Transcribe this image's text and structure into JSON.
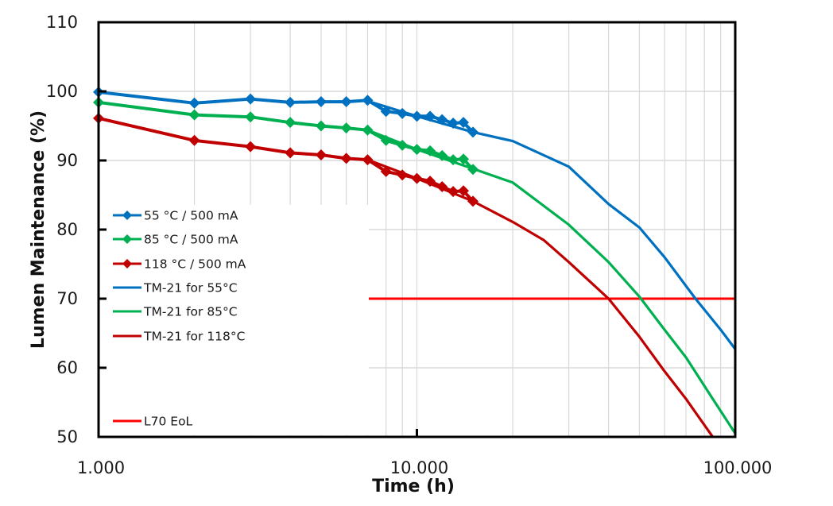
{
  "chart_data": {
    "type": "line",
    "title": "",
    "xlabel": "Time (h)",
    "ylabel": "Lumen Maintenance (%)",
    "xscale": "log",
    "xlim": [
      1000,
      100000
    ],
    "ylim": [
      50,
      110
    ],
    "grid": true,
    "x_tick_labels": [
      "1.000",
      "10.000",
      "100.000"
    ],
    "x_tick_values": [
      1000,
      10000,
      100000
    ],
    "y_tick_labels": [
      "50",
      "60",
      "70",
      "80",
      "90",
      "100",
      "110"
    ],
    "y_tick_values": [
      50,
      60,
      70,
      80,
      90,
      100,
      110
    ],
    "legend_position": "left",
    "series": [
      {
        "name": "55 °C / 500 mA",
        "kind": "measured",
        "marker": "diamond",
        "color": "#0070C0",
        "x": [
          1000,
          2000,
          3000,
          4000,
          5000,
          6000,
          7000,
          8000,
          9000,
          10000,
          11000,
          12000,
          13000,
          14000,
          15000
        ],
        "y": [
          99.9,
          98.3,
          98.9,
          98.4,
          98.5,
          98.5,
          98.7,
          97.1,
          96.8,
          96.4,
          96.4,
          95.9,
          95.4,
          95.5,
          94.1
        ]
      },
      {
        "name": "85 °C / 500 mA",
        "kind": "measured",
        "marker": "diamond",
        "color": "#00B050",
        "x": [
          1000,
          2000,
          3000,
          4000,
          5000,
          6000,
          7000,
          8000,
          9000,
          10000,
          11000,
          12000,
          13000,
          14000,
          15000
        ],
        "y": [
          98.4,
          96.6,
          96.3,
          95.5,
          95.0,
          94.7,
          94.4,
          92.9,
          92.2,
          91.6,
          91.4,
          90.7,
          90.1,
          90.2,
          88.7
        ]
      },
      {
        "name": "118 °C / 500 mA",
        "kind": "measured",
        "marker": "diamond",
        "color": "#C00000",
        "x": [
          1000,
          2000,
          3000,
          4000,
          5000,
          6000,
          7000,
          8000,
          9000,
          10000,
          11000,
          12000,
          13000,
          14000,
          15000
        ],
        "y": [
          96.1,
          92.9,
          92.0,
          91.1,
          90.8,
          90.3,
          90.1,
          88.4,
          87.9,
          87.4,
          87.0,
          86.2,
          85.5,
          85.6,
          84.1
        ]
      },
      {
        "name": "TM-21 for 55°C",
        "kind": "projection",
        "color": "#0070C0",
        "x": [
          7000,
          10000,
          15000,
          20000,
          30000,
          40000,
          50000,
          60000,
          75000,
          90000,
          100000
        ],
        "y": [
          98.6,
          96.4,
          94.1,
          92.8,
          89.1,
          83.7,
          80.3,
          76.0,
          70.0,
          65.5,
          62.7
        ]
      },
      {
        "name": "TM-21 for 85°C",
        "kind": "projection",
        "color": "#00B050",
        "x": [
          7000,
          10000,
          15000,
          20000,
          30000,
          40000,
          50000,
          60000,
          70000,
          85000,
          100000
        ],
        "y": [
          94.4,
          91.6,
          88.8,
          86.8,
          80.7,
          75.3,
          70.3,
          65.5,
          61.5,
          55.5,
          50.5
        ]
      },
      {
        "name": "TM-21 for 118°C",
        "kind": "projection",
        "color": "#C00000",
        "x": [
          7000,
          10000,
          15000,
          20000,
          25000,
          30000,
          40000,
          50000,
          60000,
          70000,
          85000
        ],
        "y": [
          90.1,
          87.4,
          84.1,
          81.1,
          78.5,
          75.3,
          70.0,
          64.5,
          59.5,
          55.5,
          50.0
        ]
      },
      {
        "name": "L70 EoL",
        "kind": "threshold",
        "color": "#FF0000",
        "x": [
          1000,
          100000
        ],
        "y": [
          70,
          70
        ]
      }
    ]
  }
}
